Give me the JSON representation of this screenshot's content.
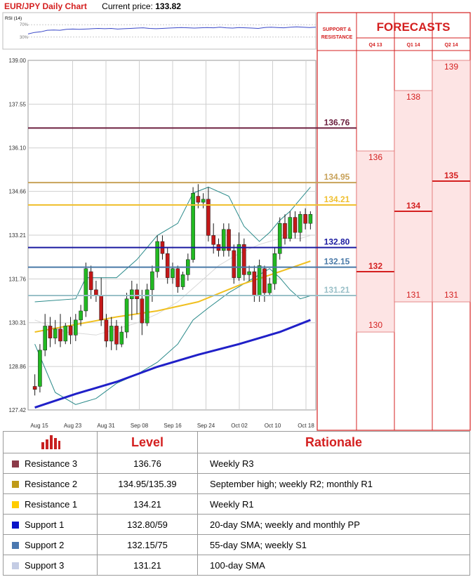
{
  "header": {
    "title": "EUR/JPY Daily Chart",
    "current_price_label": "Current price:",
    "current_price": "133.82"
  },
  "rsi": {
    "label": "RSI (14)",
    "ticks": [
      "70%",
      "30%"
    ],
    "values": [
      40,
      45,
      47,
      52,
      53,
      52,
      55,
      56,
      55,
      56,
      57,
      58,
      57,
      58,
      56,
      57,
      58,
      59,
      60,
      58,
      57,
      58,
      59,
      60,
      61,
      60,
      59,
      60,
      61,
      60,
      62,
      60,
      59,
      61,
      60,
      59,
      58,
      61,
      62,
      61,
      60,
      62,
      63,
      62,
      61,
      62
    ]
  },
  "chart_data": {
    "type": "candlestick",
    "ylim": [
      127.42,
      139.0
    ],
    "yticks": [
      "139.00",
      "137.55",
      "136.10",
      "134.66",
      "133.21",
      "131.76",
      "130.31",
      "128.86",
      "127.42"
    ],
    "xtick_labels": [
      "Aug 15",
      "Aug 23",
      "Aug 31",
      "Sep 08",
      "Sep 16",
      "Sep 24",
      "Oct 02",
      "Oct 10",
      "Oct 18"
    ],
    "candles": [
      {
        "o": 128.2,
        "h": 128.6,
        "l": 127.9,
        "c": 128.1
      },
      {
        "o": 128.2,
        "h": 129.6,
        "l": 128.0,
        "c": 129.4
      },
      {
        "o": 129.4,
        "h": 130.6,
        "l": 129.2,
        "c": 130.2
      },
      {
        "o": 130.2,
        "h": 130.5,
        "l": 129.5,
        "c": 129.8
      },
      {
        "o": 129.8,
        "h": 130.4,
        "l": 129.6,
        "c": 130.1
      },
      {
        "o": 130.1,
        "h": 130.6,
        "l": 129.5,
        "c": 129.7
      },
      {
        "o": 129.7,
        "h": 130.3,
        "l": 129.6,
        "c": 130.2
      },
      {
        "o": 130.2,
        "h": 130.5,
        "l": 129.6,
        "c": 129.9
      },
      {
        "o": 129.9,
        "h": 130.6,
        "l": 129.7,
        "c": 130.4
      },
      {
        "o": 130.4,
        "h": 130.9,
        "l": 130.2,
        "c": 130.7
      },
      {
        "o": 130.7,
        "h": 132.3,
        "l": 130.5,
        "c": 132.1
      },
      {
        "o": 132.0,
        "h": 132.2,
        "l": 131.1,
        "c": 131.4
      },
      {
        "o": 131.4,
        "h": 131.7,
        "l": 131.0,
        "c": 131.2
      },
      {
        "o": 131.2,
        "h": 131.8,
        "l": 130.2,
        "c": 130.4
      },
      {
        "o": 130.4,
        "h": 130.6,
        "l": 129.5,
        "c": 129.7
      },
      {
        "o": 129.7,
        "h": 130.5,
        "l": 129.4,
        "c": 130.2
      },
      {
        "o": 130.2,
        "h": 130.4,
        "l": 129.4,
        "c": 129.6
      },
      {
        "o": 129.6,
        "h": 130.2,
        "l": 129.5,
        "c": 130.0
      },
      {
        "o": 130.0,
        "h": 131.3,
        "l": 129.8,
        "c": 131.1
      },
      {
        "o": 131.1,
        "h": 131.7,
        "l": 130.4,
        "c": 131.4
      },
      {
        "o": 131.4,
        "h": 131.6,
        "l": 130.6,
        "c": 131.1
      },
      {
        "o": 131.1,
        "h": 131.4,
        "l": 129.9,
        "c": 130.3
      },
      {
        "o": 130.3,
        "h": 131.6,
        "l": 130.2,
        "c": 131.4
      },
      {
        "o": 131.4,
        "h": 132.2,
        "l": 131.0,
        "c": 132.0
      },
      {
        "o": 132.0,
        "h": 133.2,
        "l": 131.8,
        "c": 133.0
      },
      {
        "o": 133.0,
        "h": 133.2,
        "l": 132.4,
        "c": 132.6
      },
      {
        "o": 132.6,
        "h": 132.8,
        "l": 131.6,
        "c": 131.8
      },
      {
        "o": 131.8,
        "h": 132.3,
        "l": 131.6,
        "c": 132.1
      },
      {
        "o": 132.1,
        "h": 132.2,
        "l": 131.3,
        "c": 131.5
      },
      {
        "o": 131.5,
        "h": 132.0,
        "l": 131.4,
        "c": 131.9
      },
      {
        "o": 131.9,
        "h": 132.6,
        "l": 131.7,
        "c": 132.4
      },
      {
        "o": 132.4,
        "h": 134.8,
        "l": 132.3,
        "c": 134.6
      },
      {
        "o": 134.5,
        "h": 134.9,
        "l": 134.1,
        "c": 134.3
      },
      {
        "o": 134.3,
        "h": 134.6,
        "l": 134.1,
        "c": 134.4
      },
      {
        "o": 134.4,
        "h": 134.8,
        "l": 133.0,
        "c": 133.2
      },
      {
        "o": 133.2,
        "h": 133.6,
        "l": 132.6,
        "c": 132.9
      },
      {
        "o": 132.9,
        "h": 133.1,
        "l": 132.5,
        "c": 132.7
      },
      {
        "o": 132.7,
        "h": 133.6,
        "l": 132.5,
        "c": 133.4
      },
      {
        "o": 133.4,
        "h": 133.6,
        "l": 132.5,
        "c": 132.7
      },
      {
        "o": 132.7,
        "h": 132.9,
        "l": 131.6,
        "c": 131.8
      },
      {
        "o": 131.8,
        "h": 133.3,
        "l": 131.7,
        "c": 132.9
      },
      {
        "o": 132.9,
        "h": 133.1,
        "l": 131.7,
        "c": 131.9
      },
      {
        "o": 131.9,
        "h": 132.2,
        "l": 131.7,
        "c": 132.0
      },
      {
        "o": 132.0,
        "h": 132.2,
        "l": 131.0,
        "c": 131.2
      },
      {
        "o": 131.2,
        "h": 132.4,
        "l": 131.0,
        "c": 132.2
      },
      {
        "o": 132.1,
        "h": 132.2,
        "l": 131.0,
        "c": 131.3
      },
      {
        "o": 131.3,
        "h": 131.8,
        "l": 131.2,
        "c": 131.6
      },
      {
        "o": 131.6,
        "h": 132.8,
        "l": 131.4,
        "c": 132.6
      },
      {
        "o": 132.6,
        "h": 133.8,
        "l": 132.4,
        "c": 133.6
      },
      {
        "o": 133.6,
        "h": 133.9,
        "l": 132.9,
        "c": 133.1
      },
      {
        "o": 133.1,
        "h": 134.0,
        "l": 133.0,
        "c": 133.8
      },
      {
        "o": 133.8,
        "h": 134.0,
        "l": 133.1,
        "c": 133.3
      },
      {
        "o": 133.3,
        "h": 134.0,
        "l": 133.0,
        "c": 133.9
      },
      {
        "o": 133.9,
        "h": 134.1,
        "l": 133.4,
        "c": 133.6
      },
      {
        "o": 133.6,
        "h": 134.0,
        "l": 133.4,
        "c": 133.9
      }
    ],
    "sma20": [
      [
        0,
        130.0
      ],
      [
        8,
        130.25
      ],
      [
        16,
        130.5
      ],
      [
        24,
        130.7
      ],
      [
        32,
        131.0
      ],
      [
        40,
        131.55
      ],
      [
        48,
        132.0
      ],
      [
        54,
        132.35
      ]
    ],
    "sma55": [
      [
        0,
        127.5
      ],
      [
        8,
        127.95
      ],
      [
        16,
        128.35
      ],
      [
        24,
        128.85
      ],
      [
        32,
        129.25
      ],
      [
        40,
        129.6
      ],
      [
        48,
        130.0
      ],
      [
        54,
        130.4
      ]
    ],
    "bb_upper": [
      [
        0,
        131.0
      ],
      [
        8,
        131.1
      ],
      [
        10,
        131.8
      ],
      [
        16,
        131.8
      ],
      [
        20,
        132.4
      ],
      [
        24,
        133.2
      ],
      [
        28,
        133.6
      ],
      [
        31,
        134.6
      ],
      [
        34,
        134.8
      ],
      [
        38,
        134.5
      ],
      [
        41,
        133.5
      ],
      [
        44,
        133.0
      ],
      [
        46,
        133.3
      ],
      [
        48,
        133.7
      ],
      [
        50,
        134.0
      ],
      [
        52,
        134.4
      ],
      [
        54,
        134.8
      ]
    ],
    "bb_lower": [
      [
        0,
        129.6
      ],
      [
        4,
        128.0
      ],
      [
        8,
        127.6
      ],
      [
        12,
        127.8
      ],
      [
        16,
        128.3
      ],
      [
        20,
        128.6
      ],
      [
        24,
        129.0
      ],
      [
        28,
        129.6
      ],
      [
        31,
        130.4
      ],
      [
        34,
        130.8
      ],
      [
        38,
        131.3
      ],
      [
        41,
        131.6
      ],
      [
        44,
        131.9
      ],
      [
        46,
        132.1
      ],
      [
        48,
        131.8
      ],
      [
        50,
        131.4
      ],
      [
        52,
        131.1
      ],
      [
        54,
        131.2
      ]
    ],
    "bb_mid": [
      [
        0,
        130.4
      ],
      [
        6,
        130.0
      ],
      [
        12,
        129.9
      ],
      [
        16,
        130.1
      ],
      [
        20,
        130.3
      ],
      [
        24,
        130.6
      ],
      [
        28,
        131.0
      ],
      [
        32,
        131.6
      ],
      [
        36,
        132.2
      ],
      [
        40,
        132.6
      ],
      [
        44,
        132.9
      ],
      [
        48,
        133.1
      ],
      [
        52,
        133.1
      ],
      [
        54,
        133.2
      ]
    ]
  },
  "levels": [
    {
      "value": 136.76,
      "label": "136.76",
      "color": "#6d2040"
    },
    {
      "value": 134.95,
      "label": "134.95",
      "color": "#c8a25a"
    },
    {
      "value": 134.21,
      "label": "134.21",
      "color": "#f0c030"
    },
    {
      "value": 132.8,
      "label": "132.80",
      "color": "#1a1aa0"
    },
    {
      "value": 132.15,
      "label": "132.15",
      "color": "#4a7aa8"
    },
    {
      "value": 131.21,
      "label": "131.21",
      "color": "#9ac0c8"
    }
  ],
  "forecasts": {
    "title": "FORECASTS",
    "sr_label_1": "SUPPORT &",
    "sr_label_2": "RESISTANCE",
    "columns": [
      {
        "label": "Q4 13",
        "high": 136,
        "mid": 132,
        "low": 130
      },
      {
        "label": "Q1 14",
        "high": 138,
        "mid": 134,
        "low": 131
      },
      {
        "label": "Q2 14",
        "high": 139,
        "mid": 135,
        "low": 131
      }
    ]
  },
  "table": {
    "col_level": "Level",
    "col_rationale": "Rationale",
    "rows": [
      {
        "name": "Resistance 3",
        "level": "136.76",
        "rationale": "Weekly R3",
        "color": "#8b3a48"
      },
      {
        "name": "Resistance 2",
        "level": "134.95/135.39",
        "rationale": "September high; weekly R2; monthly R1",
        "color": "#bf9a18"
      },
      {
        "name": "Resistance 1",
        "level": "134.21",
        "rationale": "Weekly R1",
        "color": "#ffcc00"
      },
      {
        "name": "Support 1",
        "level": "132.80/59",
        "rationale": "20-day SMA; weekly and monthly PP",
        "color": "#0a14c8"
      },
      {
        "name": "Support 2",
        "level": "132.15/75",
        "rationale": "55-day SMA; weekly S1",
        "color": "#4a78b0"
      },
      {
        "name": "Support 3",
        "level": "131.21",
        "rationale": "100-day SMA",
        "color": "#c4cce4"
      }
    ]
  }
}
